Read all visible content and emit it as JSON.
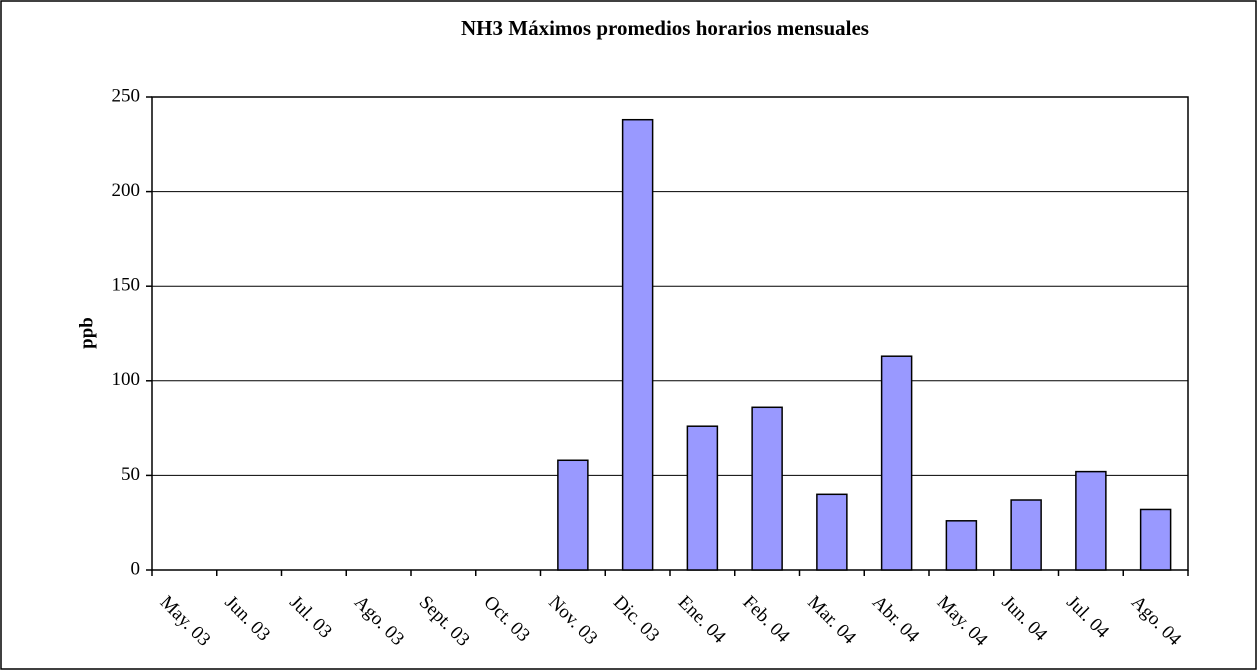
{
  "chart_data": {
    "type": "bar",
    "title": "NH3  Máximos promedios horarios mensuales",
    "y_label": "ppb",
    "categories": [
      "May. 03",
      "Jun. 03",
      "Jul. 03",
      "Ago. 03",
      "Sept. 03",
      "Oct. 03",
      "Nov. 03",
      "Dic. 03",
      "Ene. 04",
      "Feb. 04",
      "Mar. 04",
      "Abr. 04",
      "May. 04",
      "Jun. 04",
      "Jul. 04",
      "Ago. 04"
    ],
    "values": [
      null,
      null,
      null,
      null,
      null,
      null,
      58,
      238,
      76,
      86,
      40,
      113,
      26,
      37,
      52,
      32
    ],
    "color": "#9999ff",
    "ylim": [
      0,
      250
    ],
    "yticks": [
      0,
      50,
      100,
      150,
      200,
      250
    ],
    "grid": true
  }
}
